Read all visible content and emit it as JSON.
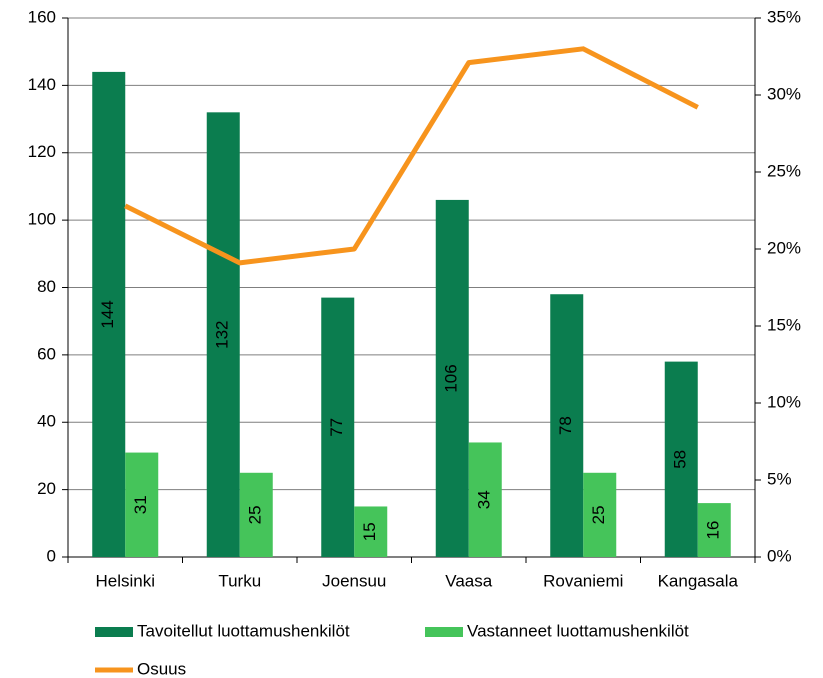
{
  "chart_data": {
    "type": "bar",
    "categories": [
      "Helsinki",
      "Turku",
      "Joensuu",
      "Vaasa",
      "Rovaniemi",
      "Kangasala"
    ],
    "series": [
      {
        "name": "Tavoitellut luottamushenkilöt",
        "color": "#0b7d4f",
        "values": [
          144,
          132,
          77,
          106,
          78,
          58
        ],
        "label_color": "#9a9a9a"
      },
      {
        "name": "Vastanneet luottamushenkilöt",
        "color": "#45c45a",
        "values": [
          31,
          25,
          15,
          34,
          25,
          16
        ],
        "label_color": "#000000"
      },
      {
        "name": "Osuus",
        "type": "line",
        "axis": "y2",
        "color": "#f7941d",
        "values": [
          22.8,
          19.1,
          20,
          32.1,
          33,
          29.2
        ]
      }
    ],
    "ylim": [
      0,
      160
    ],
    "yticks": [
      0,
      20,
      40,
      60,
      80,
      100,
      120,
      140,
      160
    ],
    "y2lim": [
      0,
      35
    ],
    "y2ticks": [
      {
        "value": 0,
        "label": "0%"
      },
      {
        "value": 5,
        "label": "5%"
      },
      {
        "value": 10,
        "label": "10%"
      },
      {
        "value": 15,
        "label": "15%"
      },
      {
        "value": 20,
        "label": "20%"
      },
      {
        "value": 25,
        "label": "25%"
      },
      {
        "value": 30,
        "label": "30%"
      },
      {
        "value": 35,
        "label": "35%"
      }
    ],
    "grid": true,
    "legend_position": "bottom"
  }
}
